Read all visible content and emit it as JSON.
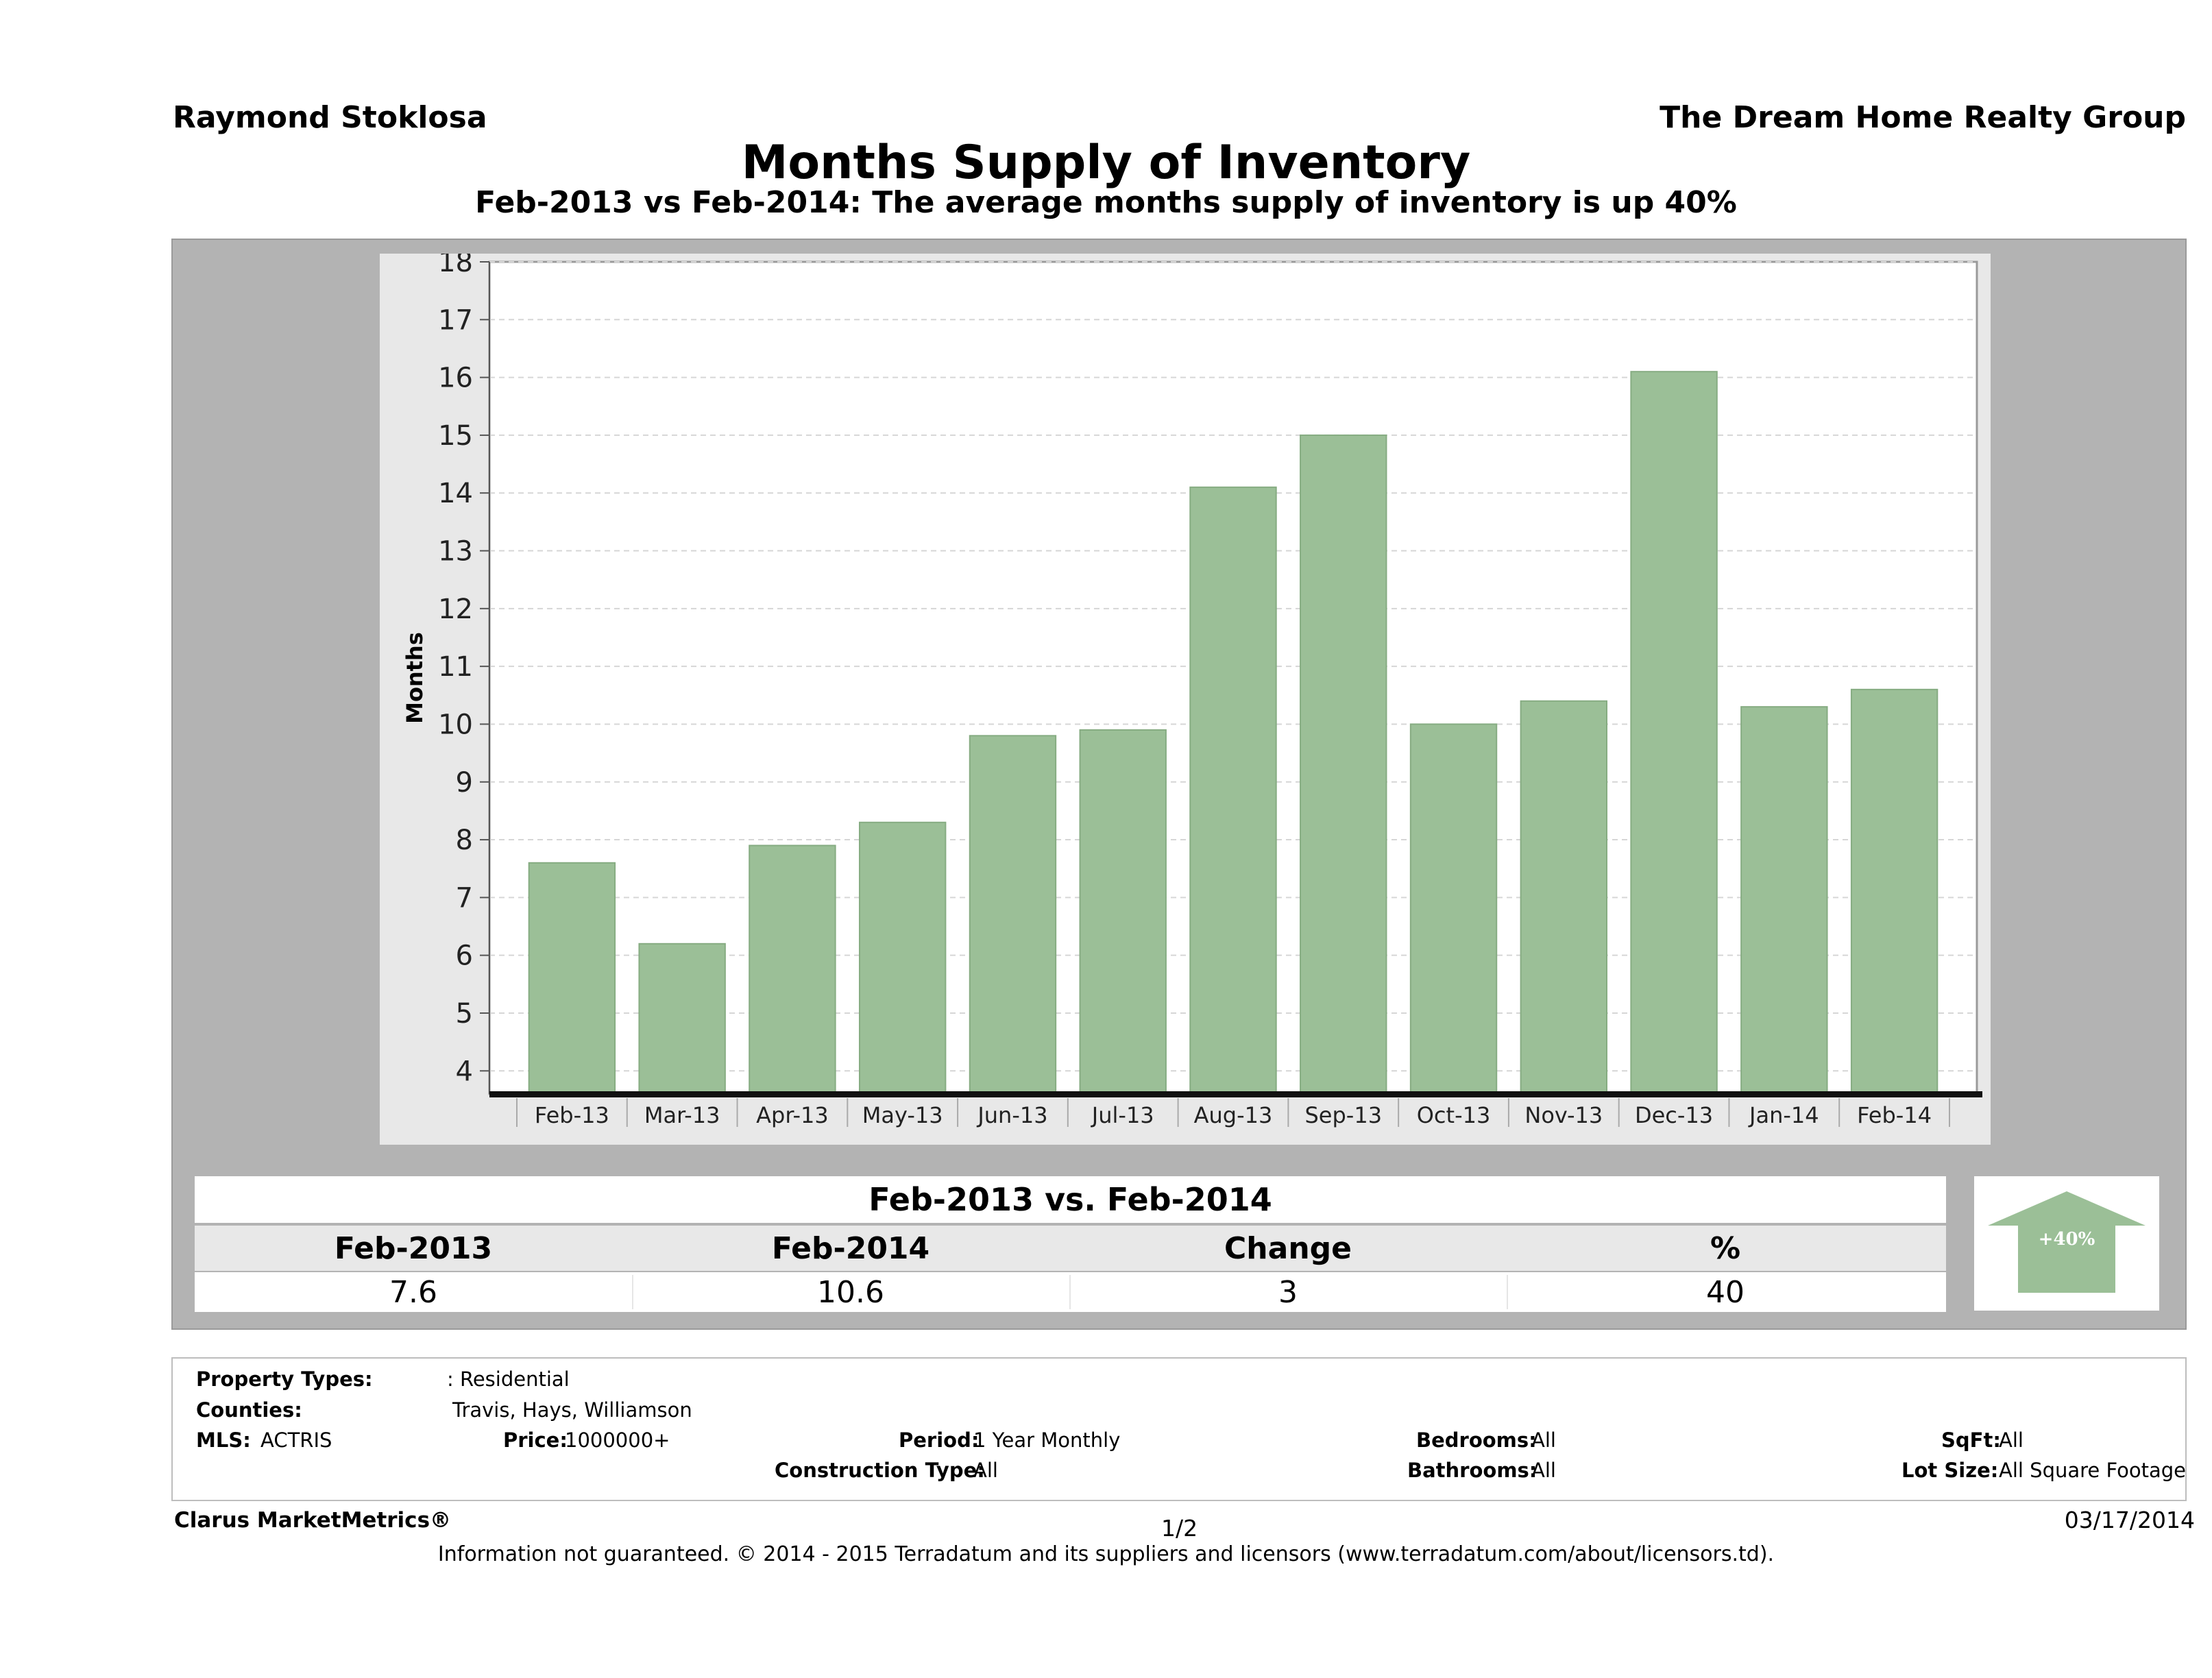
{
  "header": {
    "agent_name": "Raymond Stoklosa",
    "company": "The Dream Home Realty Group",
    "title": "Months Supply of Inventory",
    "subtitle": "Feb-2013 vs Feb-2014: The average months supply of inventory is up 40%"
  },
  "chart_data": {
    "type": "bar",
    "categories": [
      "Feb-13",
      "Mar-13",
      "Apr-13",
      "May-13",
      "Jun-13",
      "Jul-13",
      "Aug-13",
      "Sep-13",
      "Oct-13",
      "Nov-13",
      "Dec-13",
      "Jan-14",
      "Feb-14"
    ],
    "values": [
      7.6,
      6.2,
      7.9,
      8.3,
      9.8,
      9.9,
      14.1,
      15.0,
      10.0,
      10.4,
      16.1,
      10.3,
      10.6
    ],
    "ylabel": "Months",
    "ylim": [
      3.6,
      18
    ],
    "yticks": [
      4,
      5,
      6,
      7,
      8,
      9,
      10,
      11,
      12,
      13,
      14,
      15,
      16,
      17,
      18
    ],
    "grid": true,
    "bar_color": "#9bbf97"
  },
  "comparison": {
    "title": "Feb-2013 vs. Feb-2014",
    "headers": [
      "Feb-2013",
      "Feb-2014",
      "Change",
      "%"
    ],
    "values": [
      "7.6",
      "10.6",
      "3",
      "40"
    ],
    "badge": "+40%",
    "badge_color": "#9bbf97"
  },
  "filters": {
    "property_types_label": "Property Types:",
    "property_types_value": ": Residential",
    "counties_label": "Counties:",
    "counties_value": "Travis, Hays, Williamson",
    "mls_label": "MLS:",
    "mls_value": "ACTRIS",
    "price_label": "Price:",
    "price_value": "1000000+",
    "period_label": "Period:",
    "period_value": "1 Year Monthly",
    "construction_label": "Construction Type:",
    "construction_value": "All",
    "bedrooms_label": "Bedrooms:",
    "bedrooms_value": "All",
    "bathrooms_label": "Bathrooms:",
    "bathrooms_value": "All",
    "sqft_label": "SqFt:",
    "sqft_value": "All",
    "lotsize_label": "Lot Size:",
    "lotsize_value": "All Square Footage"
  },
  "footer": {
    "brand": "Clarus MarketMetrics®",
    "page": "1/2",
    "date": "03/17/2014",
    "disclaimer": "Information not guaranteed. © 2014 - 2015 Terradatum and its suppliers and licensors (www.terradatum.com/about/licensors.td)."
  }
}
